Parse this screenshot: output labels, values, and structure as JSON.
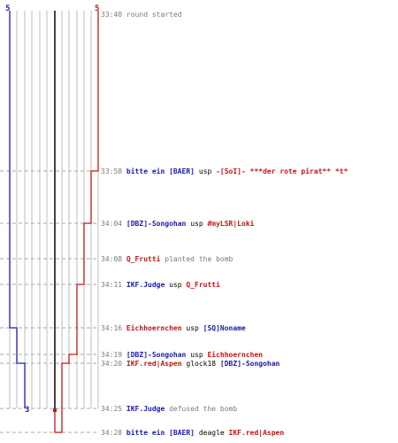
{
  "round_start": {
    "time": "33:40",
    "text": "round started"
  },
  "team_counts": {
    "blue_start": "5",
    "red_start": "5",
    "blue_end": "3"
  },
  "colors": {
    "blue": "#1a1ab0",
    "red": "#c81414",
    "grid": "#bdbdbd",
    "dash": "#aaaaaa",
    "mid": "#444444"
  },
  "events": [
    {
      "time": "33:58",
      "killer": "bitte ein [BAER]",
      "killer_team": "blue",
      "weapon": "usp",
      "victim": "-[SoI]- ***der rote pirat** *t*",
      "victim_team": "red"
    },
    {
      "time": "34:04",
      "killer": "[DBZ]-Songohan",
      "killer_team": "blue",
      "weapon": "usp",
      "victim": "#myLSR|Loki",
      "victim_team": "red"
    },
    {
      "time": "34:08",
      "actor": "Q_Frutti",
      "actor_team": "red",
      "text": "planted the bomb"
    },
    {
      "time": "34:11",
      "killer": "IKF.Judge",
      "killer_team": "blue",
      "weapon": "usp",
      "victim": "Q_Frutti",
      "victim_team": "red"
    },
    {
      "time": "34:16",
      "killer": "Eichhoernchen",
      "killer_team": "red",
      "weapon": "usp",
      "victim": "[SQ]Noname",
      "victim_team": "blue"
    },
    {
      "time": "34:19",
      "killer": "[DBZ]-Songohan",
      "killer_team": "blue",
      "weapon": "usp",
      "victim": "Eichhoernchen",
      "victim_team": "red"
    },
    {
      "time": "34:20",
      "killer": "IKF.red|Aspen",
      "killer_team": "red",
      "weapon": "glock18",
      "victim": "[DBZ]-Songohan",
      "victim_team": "blue"
    },
    {
      "time": "34:25",
      "actor": "IKF.Judge",
      "actor_team": "blue",
      "text": "defused the bomb"
    },
    {
      "time": "34:28",
      "killer": "bitte ein [BAER]",
      "killer_team": "blue",
      "weapon": "deagle",
      "victim": "IKF.red|Aspen",
      "victim_team": "red"
    }
  ]
}
